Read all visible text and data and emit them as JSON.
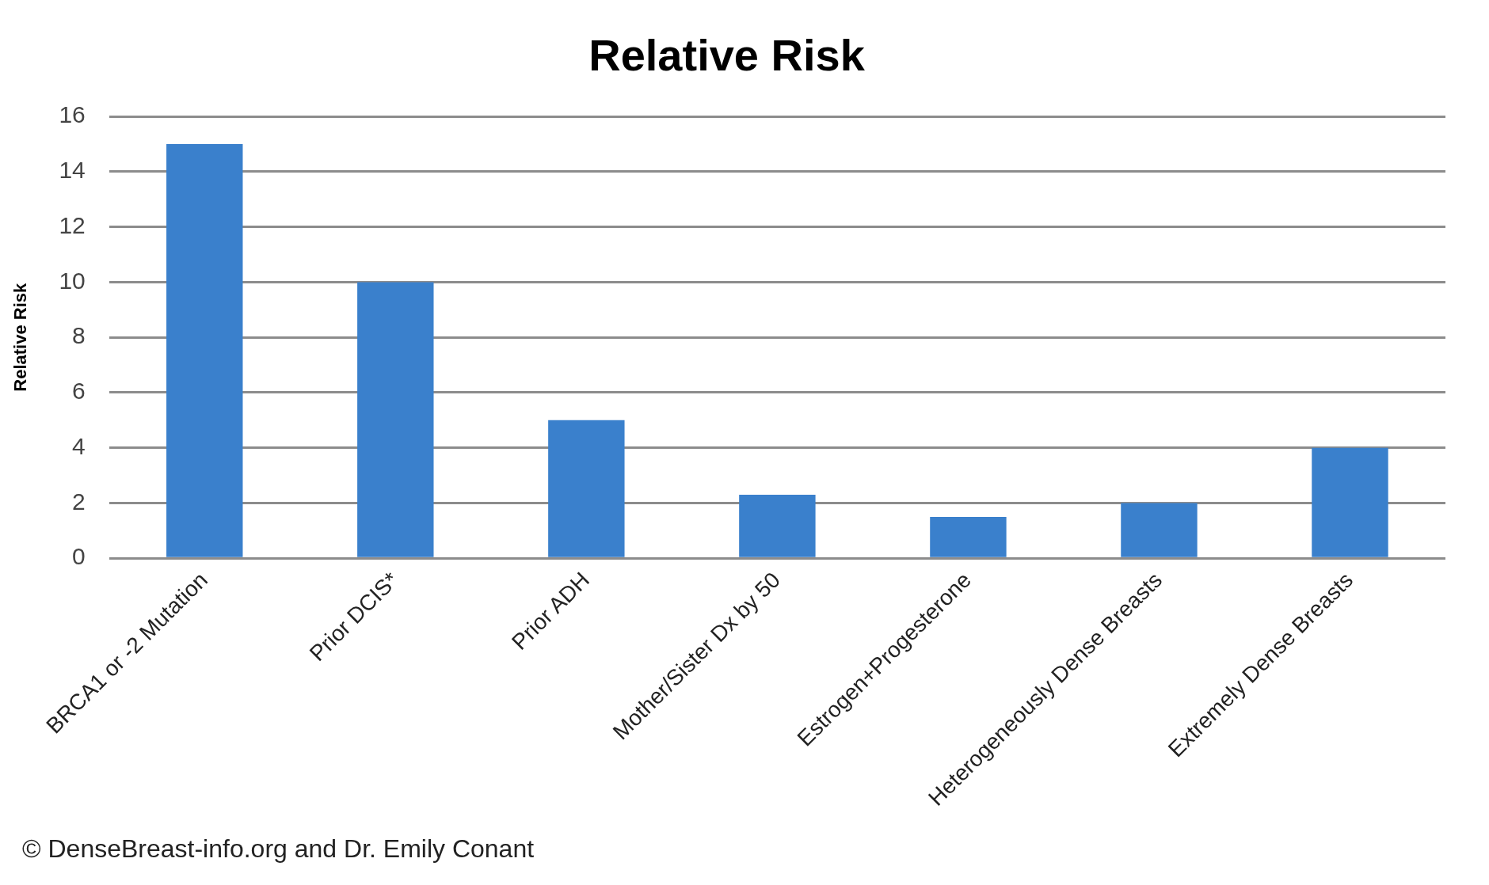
{
  "chart_data": {
    "type": "bar",
    "title": "Relative Risk",
    "ylabel": "Relative Risk",
    "categories": [
      "BRCA1 or -2 Mutation",
      "Prior DCIS*",
      "Prior ADH",
      "Mother/Sister Dx by 50",
      "Estrogen+Progesterone",
      "Heterogeneously Dense Breasts",
      "Extremely Dense Breasts"
    ],
    "values": [
      15,
      10,
      5,
      2.3,
      1.5,
      2,
      4
    ],
    "color": "#3a80cc",
    "ylim": [
      0,
      16
    ],
    "yticks": [
      0,
      2,
      4,
      6,
      8,
      10,
      12,
      14,
      16
    ],
    "grid": "y",
    "legend": false,
    "annotations": [
      "© DenseBreast-info.org and Dr. Emily Conant"
    ]
  }
}
